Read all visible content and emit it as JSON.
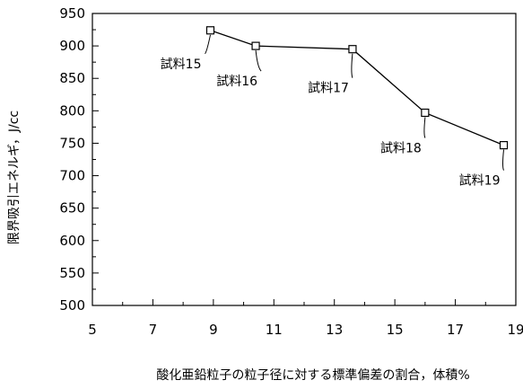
{
  "chart_data": {
    "type": "line",
    "title": "",
    "xlabel": "酸化亜鉛粒子の粒子径に対する標準偏差の割合，体積%",
    "ylabel": "限界吸引エネルギ，J/cc",
    "xlim": [
      5,
      19
    ],
    "ylim": [
      500,
      950
    ],
    "x_ticks": [
      5,
      7,
      9,
      11,
      13,
      15,
      17,
      19
    ],
    "y_ticks": [
      500,
      550,
      600,
      650,
      700,
      750,
      800,
      850,
      900,
      950
    ],
    "grid": false,
    "legend": "none",
    "series": [
      {
        "points": [
          {
            "x": 8.9,
            "y": 924,
            "label": "試料15"
          },
          {
            "x": 10.4,
            "y": 900,
            "label": "試料16"
          },
          {
            "x": 13.6,
            "y": 895,
            "label": "試料17"
          },
          {
            "x": 16.0,
            "y": 797,
            "label": "試料18"
          },
          {
            "x": 18.6,
            "y": 747,
            "label": "試料19"
          }
        ]
      }
    ],
    "line_color": "#000000",
    "marker": "open-square"
  }
}
